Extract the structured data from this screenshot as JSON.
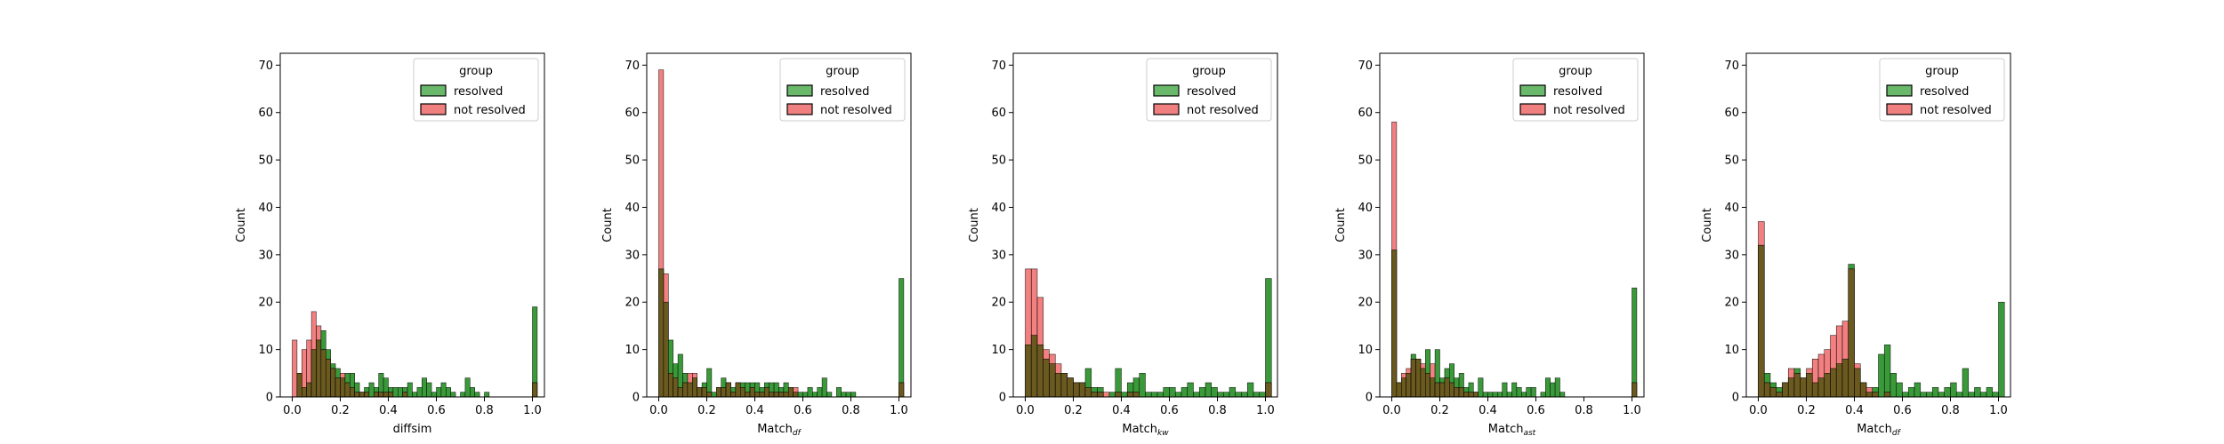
{
  "legend": {
    "title": "group",
    "entries": [
      {
        "label": "resolved",
        "color": "#2ca02c"
      },
      {
        "label": "not resolved",
        "color": "#ee3333"
      }
    ]
  },
  "series_colors": {
    "resolved": "#3a9a3a",
    "not_resolved": "#ef5555",
    "overlap": "#6b5a1f"
  },
  "chart_data": [
    {
      "type": "bar",
      "xlabel": "diffsim",
      "xlabel_sub": "",
      "ylabel": "Count",
      "xlim": [
        -0.05,
        1.05
      ],
      "ylim": [
        0,
        72.5
      ],
      "xticks": [
        "0.0",
        "0.2",
        "0.4",
        "0.6",
        "0.8",
        "1.0"
      ],
      "yticks": [
        "0",
        "10",
        "20",
        "30",
        "40",
        "50",
        "60",
        "70"
      ],
      "grid": false,
      "legend_position": "top-right",
      "bin_start": 0.0,
      "bin_width": 0.02,
      "series": [
        {
          "name": "resolved",
          "values": [
            0,
            5,
            2,
            3,
            10,
            12,
            14,
            10,
            7,
            6,
            4,
            5,
            5,
            3,
            1,
            2,
            3,
            2,
            5,
            4,
            2,
            2,
            2,
            2,
            3,
            1,
            2,
            4,
            3,
            1,
            2,
            3,
            2,
            1,
            0,
            1,
            4,
            2,
            1,
            0,
            1,
            0,
            0,
            0,
            0,
            0,
            0,
            0,
            0,
            0,
            19
          ]
        },
        {
          "name": "not resolved",
          "values": [
            12,
            5,
            10,
            12,
            18,
            15,
            10,
            8,
            6,
            4,
            5,
            3,
            2,
            1,
            1,
            1,
            0,
            1,
            1,
            1,
            1,
            0,
            0,
            1,
            0,
            0,
            0,
            0,
            0,
            0,
            0,
            0,
            0,
            0,
            0,
            0,
            0,
            0,
            0,
            0,
            0,
            0,
            0,
            0,
            0,
            0,
            0,
            0,
            0,
            0,
            3
          ]
        }
      ]
    },
    {
      "type": "bar",
      "xlabel": "Match",
      "xlabel_sub": "df",
      "ylabel": "Count",
      "xlim": [
        -0.05,
        1.05
      ],
      "ylim": [
        0,
        72.5
      ],
      "xticks": [
        "0.0",
        "0.2",
        "0.4",
        "0.6",
        "0.8",
        "1.0"
      ],
      "yticks": [
        "0",
        "10",
        "20",
        "30",
        "40",
        "50",
        "60",
        "70"
      ],
      "grid": false,
      "legend_position": "top-right",
      "bin_start": 0.0,
      "bin_width": 0.02,
      "series": [
        {
          "name": "resolved",
          "values": [
            27,
            20,
            12,
            7,
            9,
            5,
            3,
            4,
            2,
            3,
            6,
            1,
            2,
            4,
            3,
            2,
            3,
            3,
            3,
            3,
            3,
            2,
            3,
            3,
            3,
            2,
            3,
            2,
            1,
            1,
            1,
            2,
            1,
            2,
            4,
            1,
            0,
            2,
            1,
            1,
            1,
            0,
            0,
            0,
            0,
            0,
            0,
            0,
            0,
            0,
            25
          ]
        },
        {
          "name": "not resolved",
          "values": [
            69,
            26,
            5,
            4,
            2,
            3,
            5,
            5,
            2,
            2,
            1,
            0,
            2,
            2,
            3,
            1,
            3,
            2,
            1,
            2,
            1,
            1,
            2,
            1,
            1,
            1,
            1,
            2,
            2,
            0,
            0,
            0,
            0,
            0,
            0,
            0,
            0,
            0,
            0,
            0,
            0,
            0,
            0,
            0,
            0,
            0,
            0,
            0,
            0,
            0,
            3
          ]
        }
      ]
    },
    {
      "type": "bar",
      "xlabel": "Match",
      "xlabel_sub": "kw",
      "ylabel": "Count",
      "xlim": [
        -0.05,
        1.05
      ],
      "ylim": [
        0,
        72.5
      ],
      "xticks": [
        "0.0",
        "0.2",
        "0.4",
        "0.6",
        "0.8",
        "1.0"
      ],
      "yticks": [
        "0",
        "10",
        "20",
        "30",
        "40",
        "50",
        "60",
        "70"
      ],
      "grid": false,
      "legend_position": "top-right",
      "bin_start": 0.0,
      "bin_width": 0.02,
      "series": [
        {
          "name": "resolved",
          "values": [
            11,
            13,
            11,
            8,
            7,
            5,
            5,
            4,
            3,
            3,
            6,
            2,
            2,
            0,
            1,
            6,
            1,
            3,
            4,
            5,
            1,
            1,
            1,
            2,
            2,
            1,
            2,
            3,
            1,
            2,
            3,
            2,
            1,
            1,
            2,
            1,
            1,
            3,
            1,
            1,
            25
          ]
        },
        {
          "name": "not resolved",
          "values": [
            27,
            27,
            21,
            10,
            9,
            7,
            5,
            4,
            3,
            3,
            2,
            1,
            1,
            1,
            0,
            1,
            0,
            1,
            1,
            0,
            0,
            0,
            0,
            0,
            0,
            0,
            0,
            0,
            0,
            0,
            0,
            0,
            0,
            0,
            0,
            0,
            0,
            0,
            0,
            0,
            3
          ]
        }
      ]
    },
    {
      "type": "bar",
      "xlabel": "Match",
      "xlabel_sub": "ast",
      "ylabel": "Count",
      "xlim": [
        -0.05,
        1.05
      ],
      "ylim": [
        0,
        72.5
      ],
      "xticks": [
        "0.0",
        "0.2",
        "0.4",
        "0.6",
        "0.8",
        "1.0"
      ],
      "yticks": [
        "0",
        "10",
        "20",
        "30",
        "40",
        "50",
        "60",
        "70"
      ],
      "grid": false,
      "legend_position": "top-right",
      "bin_start": 0.0,
      "bin_width": 0.02,
      "series": [
        {
          "name": "resolved",
          "values": [
            31,
            3,
            4,
            5,
            9,
            8,
            6,
            10,
            4,
            10,
            4,
            6,
            7,
            4,
            5,
            2,
            3,
            1,
            4,
            1,
            1,
            1,
            1,
            3,
            1,
            3,
            2,
            1,
            2,
            2,
            0,
            1,
            4,
            3,
            4,
            1,
            0,
            0,
            0,
            0,
            0,
            0,
            0,
            0,
            0,
            0,
            0,
            0,
            0,
            0,
            23
          ]
        },
        {
          "name": "not resolved",
          "values": [
            58,
            3,
            5,
            6,
            8,
            8,
            7,
            5,
            7,
            3,
            3,
            4,
            3,
            2,
            2,
            1,
            1,
            1,
            0,
            0,
            0,
            0,
            0,
            0,
            0,
            0,
            0,
            0,
            0,
            0,
            0,
            0,
            0,
            0,
            0,
            0,
            0,
            0,
            0,
            0,
            0,
            0,
            0,
            0,
            0,
            0,
            0,
            0,
            0,
            0,
            3
          ]
        }
      ]
    },
    {
      "type": "bar",
      "xlabel": "Match",
      "xlabel_sub": "df",
      "ylabel": "Count",
      "xlim": [
        -0.05,
        1.05
      ],
      "ylim": [
        0,
        72.5
      ],
      "xticks": [
        "0.0",
        "0.2",
        "0.4",
        "0.6",
        "0.8",
        "1.0"
      ],
      "yticks": [
        "0",
        "10",
        "20",
        "30",
        "40",
        "50",
        "60",
        "70"
      ],
      "grid": false,
      "legend_position": "top-right",
      "bin_start": 0.0,
      "bin_width": 0.02,
      "series": [
        {
          "name": "resolved",
          "values": [
            32,
            5,
            3,
            2,
            3,
            4,
            6,
            4,
            5,
            3,
            4,
            5,
            6,
            7,
            8,
            28,
            6,
            3,
            1,
            2,
            9,
            11,
            5,
            3,
            1,
            2,
            3,
            1,
            1,
            2,
            1,
            2,
            3,
            1,
            6,
            1,
            2,
            1,
            2,
            1,
            20
          ]
        },
        {
          "name": "not resolved",
          "values": [
            37,
            3,
            2,
            1,
            3,
            6,
            5,
            4,
            6,
            8,
            9,
            10,
            13,
            15,
            16,
            27,
            7,
            3,
            2,
            1,
            0,
            1,
            0,
            0,
            0,
            0,
            0,
            0,
            0,
            0,
            0,
            0,
            0,
            0,
            0,
            0,
            0,
            0,
            0,
            0,
            0
          ]
        }
      ]
    }
  ]
}
